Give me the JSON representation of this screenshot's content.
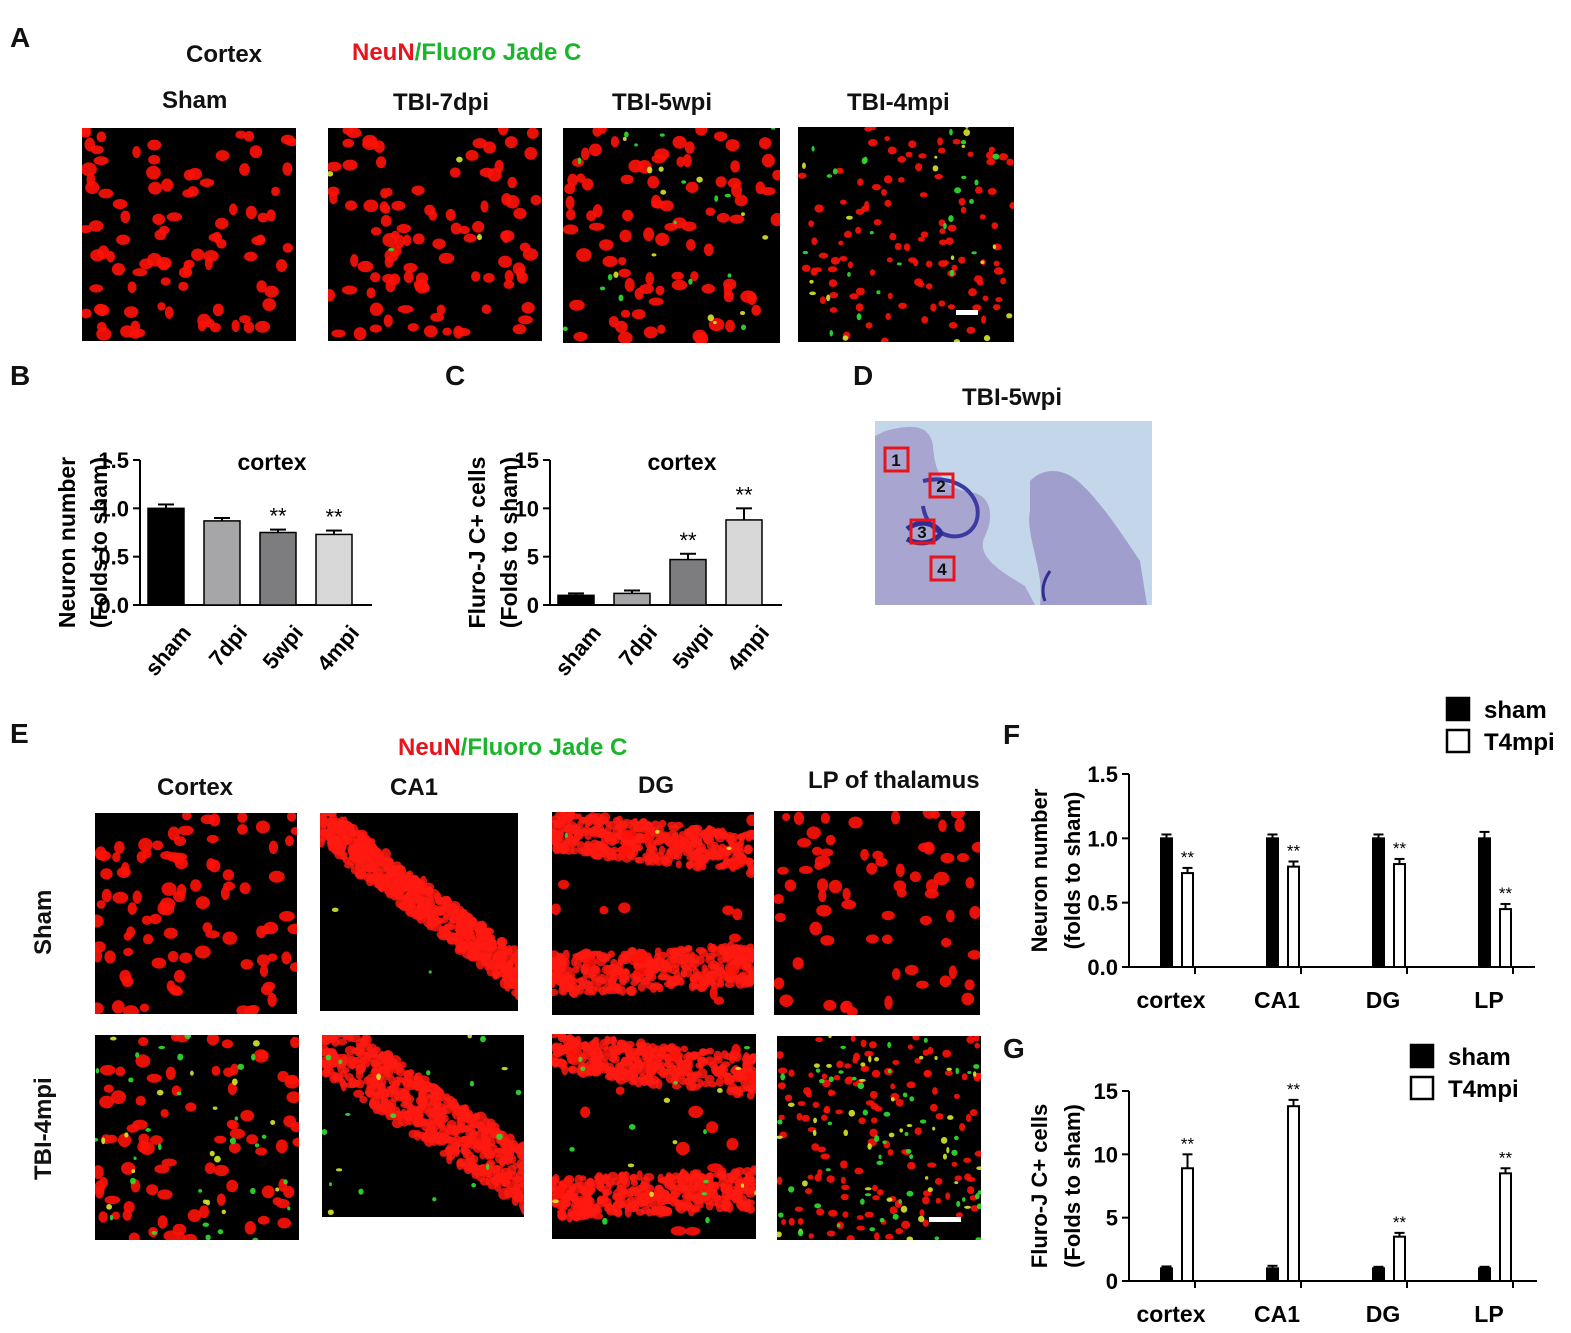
{
  "panel_labels": {
    "a": "A",
    "b": "B",
    "c": "C",
    "d": "D",
    "e": "E",
    "f": "F",
    "g": "G"
  },
  "panel_a": {
    "region": "Cortex",
    "stain_red": "NeuN",
    "stain_sep": "/",
    "stain_green": "Fluoro Jade C",
    "columns": [
      "Sham",
      "TBI-7dpi",
      "TBI-5wpi",
      "TBI-4mpi"
    ]
  },
  "panel_d": {
    "title": "TBI-5wpi",
    "boxes": [
      "1",
      "2",
      "3",
      "4"
    ]
  },
  "panel_e": {
    "stain_red": "NeuN",
    "stain_sep": "/",
    "stain_green": "Fluoro Jade C",
    "columns": [
      "Cortex",
      "CA1",
      "DG",
      "LP of thalamus"
    ],
    "rows": [
      "Sham",
      "TBI-4mpi"
    ]
  },
  "colors": {
    "red_stain": "#e8141b",
    "green_stain": "#1ab52a",
    "bar_black": "#000000"
  },
  "chart_data": [
    {
      "id": "B",
      "type": "bar",
      "title": "cortex",
      "ylabel": "Neuron number",
      "ylabel2": "(Folds to sham)",
      "categories": [
        "sham",
        "7dpi",
        "5wpi",
        "4mpi"
      ],
      "values": [
        1.0,
        0.87,
        0.75,
        0.73
      ],
      "errors": [
        0.04,
        0.03,
        0.03,
        0.04
      ],
      "significance": [
        "",
        "",
        "**",
        "**"
      ],
      "fills": [
        "#000000",
        "#a6a6a8",
        "#7d7d7f",
        "#d8d8d8"
      ],
      "ylim": [
        0,
        1.5
      ],
      "yticks": [
        "0.0",
        "0.5",
        "1.0",
        "1.5"
      ]
    },
    {
      "id": "C",
      "type": "bar",
      "title": "cortex",
      "ylabel": "Fluro-J C+ cells",
      "ylabel2": "(Folds to sham)",
      "categories": [
        "sham",
        "7dpi",
        "5wpi",
        "4mpi"
      ],
      "values": [
        1.0,
        1.2,
        4.7,
        8.8
      ],
      "errors": [
        0.2,
        0.3,
        0.6,
        1.2
      ],
      "significance": [
        "",
        "",
        "**",
        "**"
      ],
      "fills": [
        "#000000",
        "#a6a6a8",
        "#7d7d7f",
        "#d8d8d8"
      ],
      "ylim": [
        0,
        15
      ],
      "yticks": [
        "0",
        "5",
        "10",
        "15"
      ]
    },
    {
      "id": "F",
      "type": "bar",
      "ylabel": "Neuron number",
      "ylabel2": "(folds to sham)",
      "categories": [
        "cortex",
        "CA1",
        "DG",
        "LP"
      ],
      "series": [
        {
          "name": "sham",
          "values": [
            1.0,
            1.0,
            1.0,
            1.0
          ],
          "errors": [
            0.03,
            0.03,
            0.03,
            0.05
          ]
        },
        {
          "name": "T4mpi",
          "values": [
            0.73,
            0.78,
            0.8,
            0.45
          ],
          "errors": [
            0.04,
            0.04,
            0.04,
            0.04
          ]
        }
      ],
      "significance": [
        "**",
        "**",
        "**",
        "**"
      ],
      "ylim": [
        0,
        1.5
      ],
      "yticks": [
        "0.0",
        "0.5",
        "1.0",
        "1.5"
      ],
      "legend": "top-right"
    },
    {
      "id": "G",
      "type": "bar",
      "ylabel": "Fluro-J C+ cells",
      "ylabel2": "(Folds to sham)",
      "categories": [
        "cortex",
        "CA1",
        "DG",
        "LP"
      ],
      "series": [
        {
          "name": "sham",
          "values": [
            1.0,
            1.0,
            1.0,
            1.0
          ],
          "errors": [
            0.15,
            0.2,
            0.12,
            0.12
          ]
        },
        {
          "name": "T4mpi",
          "values": [
            8.9,
            13.8,
            3.5,
            8.5
          ],
          "errors": [
            1.1,
            0.5,
            0.3,
            0.4
          ]
        }
      ],
      "significance": [
        "**",
        "**",
        "**",
        "**"
      ],
      "ylim": [
        0,
        15
      ],
      "yticks": [
        "0",
        "5",
        "10",
        "15"
      ],
      "legend": "top-right"
    }
  ]
}
